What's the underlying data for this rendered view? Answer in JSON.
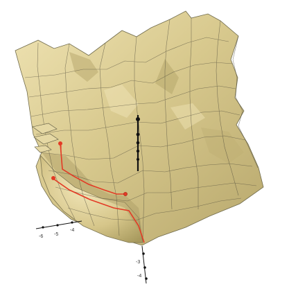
{
  "figure": {
    "colors": {
      "background": "#ffffff",
      "surface": "#d8c98e",
      "surface_shadow": "#a8995c",
      "surface_highlight": "#f1e7bb",
      "mesh": "#4e4a3a",
      "path": "#e33a25",
      "axis": "#111111"
    },
    "left_axis_labels": [
      "-6",
      "-5",
      "-4"
    ],
    "bottom_axis_labels": [
      "-3",
      "-4"
    ]
  }
}
